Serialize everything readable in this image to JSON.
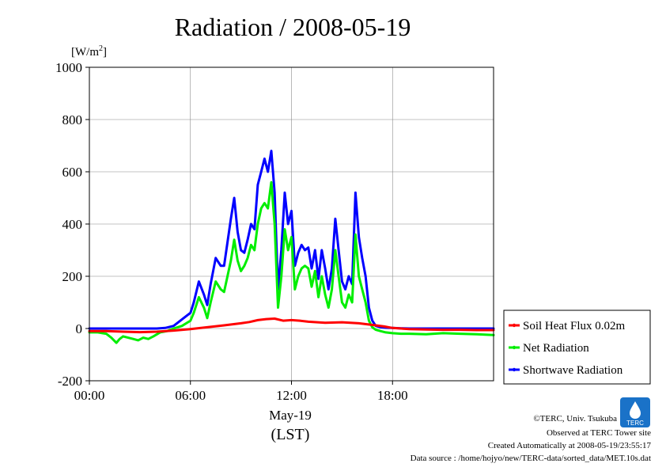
{
  "chart_data": {
    "type": "line",
    "title": "Radiation / 2008-05-19",
    "y_unit": "[W/m",
    "y_unit_sup": "2",
    "y_unit_close": "]",
    "ylim": [
      -200,
      1000
    ],
    "yticks": [
      "-200",
      "0",
      "200",
      "400",
      "600",
      "800",
      "1000"
    ],
    "xlim": [
      0,
      24
    ],
    "xticks": [
      {
        "value": 0,
        "label": "00:00"
      },
      {
        "value": 6,
        "label": "06:00"
      },
      {
        "value": 12,
        "label": "12:00"
      },
      {
        "value": 18,
        "label": "18:00"
      }
    ],
    "xlabel": "May-19",
    "xlabel_sub": "(LST)",
    "grid": true,
    "legend_position": "right-bottom",
    "series": [
      {
        "name": "Soil Heat Flux 0.02m",
        "color": "#ff0000",
        "x": [
          0,
          1,
          2,
          3,
          4,
          5,
          6,
          7,
          8,
          9,
          9.5,
          10,
          10.5,
          11,
          11.5,
          12,
          12.5,
          13,
          14,
          15,
          16,
          17,
          17.5,
          18,
          19,
          20,
          21,
          22,
          23,
          24
        ],
        "y": [
          -10,
          -10,
          -12,
          -14,
          -12,
          -8,
          -2,
          5,
          12,
          20,
          25,
          32,
          36,
          38,
          30,
          32,
          30,
          26,
          22,
          24,
          20,
          12,
          8,
          2,
          -2,
          -4,
          -5,
          -5,
          -6,
          -6
        ]
      },
      {
        "name": "Net Radiation",
        "color": "#00ee00",
        "x": [
          0,
          0.5,
          1,
          1.3,
          1.6,
          1.8,
          2,
          2.3,
          2.6,
          2.9,
          3.2,
          3.5,
          3.8,
          4.2,
          4.6,
          5,
          5.5,
          6,
          6.2,
          6.5,
          6.8,
          7,
          7.2,
          7.5,
          7.8,
          8,
          8.2,
          8.4,
          8.6,
          8.8,
          9,
          9.2,
          9.4,
          9.6,
          9.8,
          10,
          10.2,
          10.4,
          10.6,
          10.8,
          11,
          11.2,
          11.4,
          11.6,
          11.8,
          12,
          12.2,
          12.4,
          12.6,
          12.8,
          13,
          13.2,
          13.4,
          13.6,
          13.8,
          14,
          14.2,
          14.4,
          14.6,
          14.8,
          15,
          15.2,
          15.4,
          15.6,
          15.8,
          16,
          16.2,
          16.4,
          16.6,
          16.8,
          17,
          17.3,
          17.6,
          18,
          18.5,
          19,
          20,
          21,
          22,
          23,
          24
        ],
        "y": [
          -15,
          -15,
          -20,
          -35,
          -55,
          -40,
          -30,
          -35,
          -40,
          -45,
          -35,
          -40,
          -30,
          -15,
          -10,
          0,
          10,
          30,
          60,
          120,
          80,
          40,
          100,
          180,
          150,
          140,
          200,
          260,
          340,
          260,
          220,
          240,
          270,
          320,
          300,
          400,
          460,
          480,
          460,
          560,
          400,
          80,
          200,
          380,
          300,
          350,
          150,
          200,
          230,
          240,
          230,
          160,
          220,
          120,
          200,
          130,
          80,
          150,
          300,
          200,
          100,
          80,
          130,
          100,
          360,
          200,
          150,
          100,
          30,
          5,
          -5,
          -10,
          -15,
          -18,
          -20,
          -20,
          -22,
          -18,
          -20,
          -22,
          -25
        ]
      },
      {
        "name": "Shortwave Radiation",
        "color": "#0000ff",
        "x": [
          0,
          1,
          2,
          3,
          4,
          4.5,
          5,
          5.3,
          5.6,
          6,
          6.2,
          6.5,
          6.8,
          7,
          7.2,
          7.5,
          7.8,
          8,
          8.2,
          8.4,
          8.6,
          8.8,
          9,
          9.2,
          9.4,
          9.6,
          9.8,
          10,
          10.2,
          10.4,
          10.6,
          10.8,
          11,
          11.2,
          11.4,
          11.6,
          11.8,
          12,
          12.2,
          12.4,
          12.6,
          12.8,
          13,
          13.2,
          13.4,
          13.6,
          13.8,
          14,
          14.2,
          14.4,
          14.6,
          14.8,
          15,
          15.2,
          15.4,
          15.6,
          15.8,
          16,
          16.2,
          16.4,
          16.6,
          16.8,
          17,
          17.3,
          17.6,
          18,
          18.5,
          19,
          20,
          21,
          22,
          23,
          24
        ],
        "y": [
          0,
          0,
          0,
          0,
          0,
          2,
          10,
          25,
          40,
          60,
          100,
          180,
          130,
          90,
          170,
          270,
          240,
          240,
          330,
          420,
          500,
          370,
          300,
          290,
          340,
          400,
          380,
          550,
          600,
          650,
          600,
          680,
          520,
          150,
          300,
          520,
          400,
          450,
          240,
          290,
          320,
          300,
          310,
          230,
          300,
          190,
          300,
          230,
          150,
          230,
          420,
          300,
          180,
          150,
          200,
          170,
          520,
          350,
          270,
          200,
          80,
          30,
          10,
          5,
          3,
          2,
          1,
          0,
          0,
          0,
          0,
          0,
          0
        ]
      }
    ]
  },
  "footer": {
    "copyright": "©TERC, Univ. Tsukuba",
    "observed": "Observed at TERC Tower site",
    "created": "Created Automatically at 2008-05-19/23:55:17",
    "source": "Data source : /home/hojyo/new/TERC-data/sorted_data/MET.10s.dat"
  },
  "logo": {
    "text": "TERC",
    "color": "#1a72c8"
  }
}
